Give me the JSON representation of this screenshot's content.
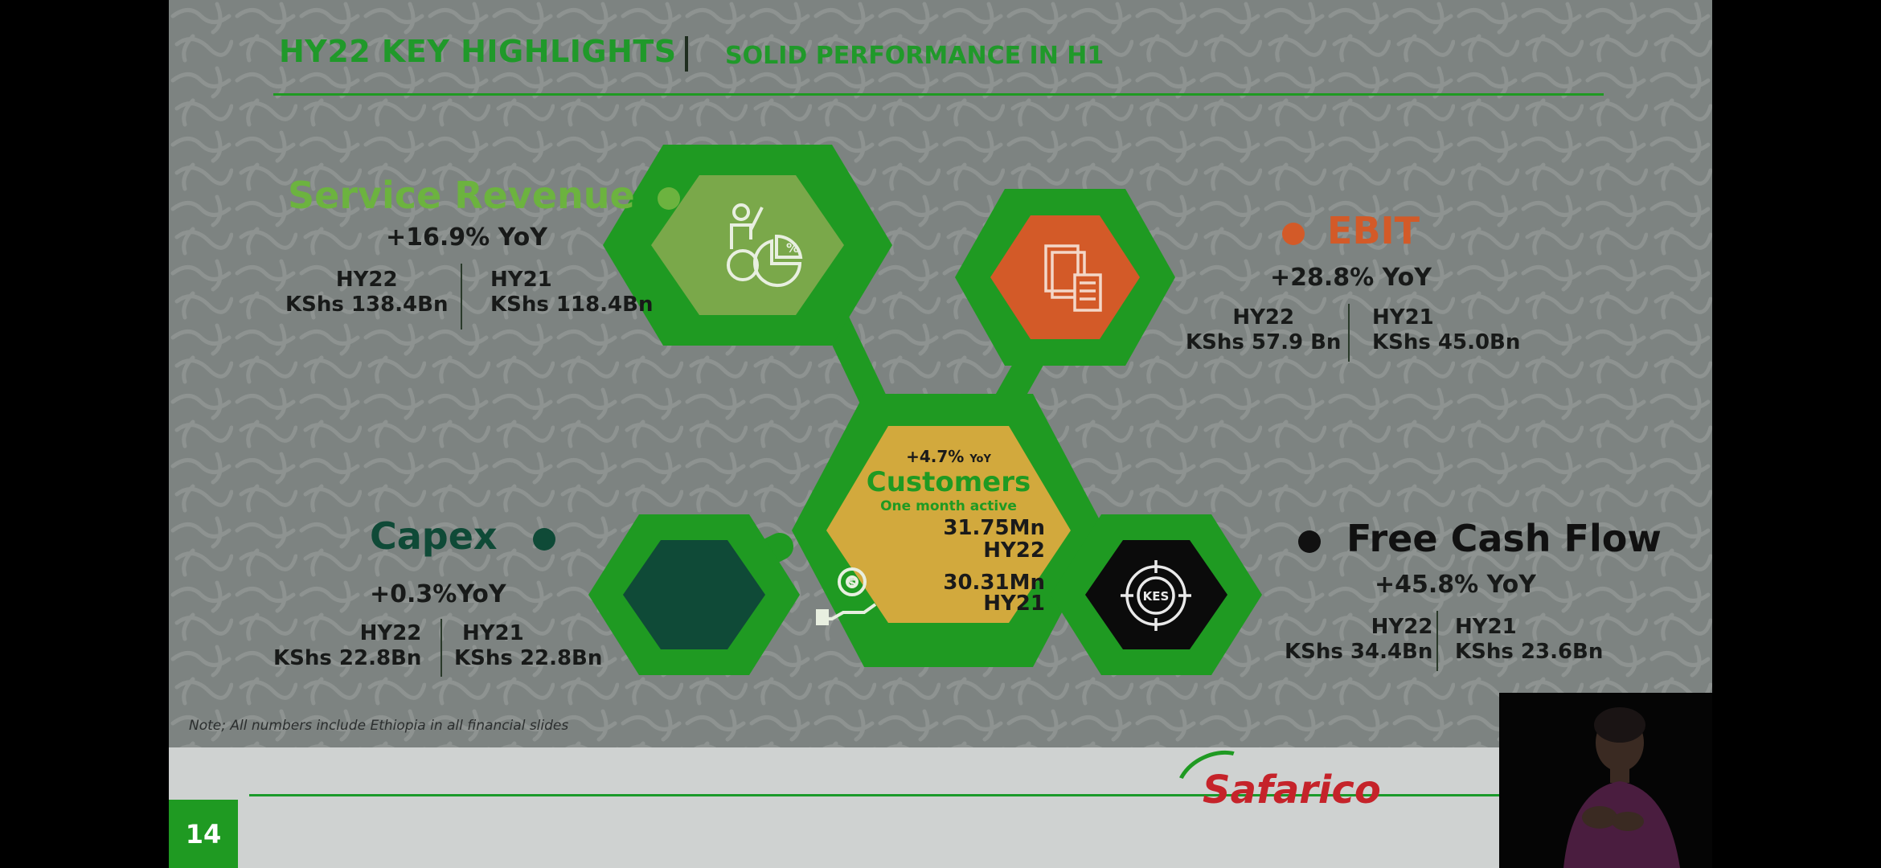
{
  "slide": {
    "title": "HY22 KEY HIGHLIGHTS",
    "subtitle": "SOLID PERFORMANCE IN H1",
    "note": "Note; All numbers include Ethiopia in all financial slides",
    "page_number": "14",
    "logo_text": "Safarico",
    "colors": {
      "green": "#1f9a22",
      "orange": "#d35a28",
      "gold": "#d2a93d",
      "dark_green": "#0f4a37"
    }
  },
  "service_revenue": {
    "label": "Service Revenue",
    "yoy": "+16.9% YoY",
    "hy22_label": "HY22",
    "hy22_value": "KShs 138.4Bn",
    "hy21_label": "HY21",
    "hy21_value": "KShs 118.4Bn",
    "icon": "presenter-pie-chart-icon"
  },
  "ebit": {
    "label": "EBIT",
    "yoy": "+28.8% YoY",
    "hy22_label": "HY22",
    "hy22_value": "KShs 57.9 Bn",
    "hy21_label": "HY21",
    "hy21_value": "KShs 45.0Bn",
    "icon": "documents-calculator-icon"
  },
  "customers": {
    "yoy_value": "+4.7%",
    "yoy_unit": "YoY",
    "label": "Customers",
    "sublabel": "One month active",
    "hy22_value": "31.75Mn",
    "hy22_label": "HY22",
    "hy21_value": "30.31Mn",
    "hy21_label": "HY21"
  },
  "capex": {
    "label": "Capex",
    "yoy": "+0.3%YoY",
    "hy22_label": "HY22",
    "hy22_value": "KShs 22.8Bn",
    "hy21_label": "HY21",
    "hy21_value": "KShs 22.8Bn",
    "icon": "hand-gear-dollar-icon"
  },
  "free_cash_flow": {
    "label": "Free Cash Flow",
    "yoy": "+45.8% YoY",
    "hy22_label": "HY22",
    "hy22_value": "KShs 34.4Bn",
    "hy21_label": "HY21",
    "hy21_value": "KShs 23.6Bn",
    "icon": "kes-target-icon",
    "icon_text": "KES"
  }
}
